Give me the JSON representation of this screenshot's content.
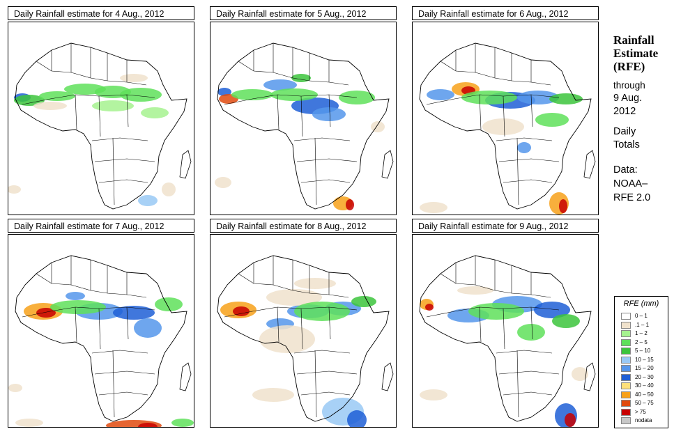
{
  "panels": [
    {
      "title": "Daily Rainfall estimate for  4 Aug., 2012"
    },
    {
      "title": "Daily Rainfall estimate for  5 Aug., 2012"
    },
    {
      "title": "Daily Rainfall estimate for  6 Aug., 2012"
    },
    {
      "title": "Daily Rainfall estimate for  7 Aug., 2012"
    },
    {
      "title": "Daily Rainfall estimate for  8 Aug., 2012"
    },
    {
      "title": "Daily Rainfall estimate for  9 Aug., 2012"
    }
  ],
  "sidebar": {
    "title_line1": "Rainfall",
    "title_line2": "Estimate",
    "title_line3": "(RFE)",
    "through_label": "through",
    "through_date1": "9 Aug.",
    "through_date2": "2012",
    "daily_label1": "Daily",
    "daily_label2": "Totals",
    "data_label": "Data:",
    "data_source1": "NOAA–",
    "data_source2": "RFE 2.0"
  },
  "legend": {
    "title": "RFE (mm)",
    "items": [
      {
        "label": "0 – 1",
        "color": "#ffffff"
      },
      {
        "label": ".1 – 1",
        "color": "#f0e2cc"
      },
      {
        "label": "1 – 2",
        "color": "#a6f28f"
      },
      {
        "label": "2 – 5",
        "color": "#5fe05a"
      },
      {
        "label": "5 – 10",
        "color": "#3cc43c"
      },
      {
        "label": "10 – 15",
        "color": "#99c9f5"
      },
      {
        "label": "15 – 20",
        "color": "#5596eb"
      },
      {
        "label": "20 – 30",
        "color": "#1e5fd6"
      },
      {
        "label": "30 – 40",
        "color": "#ffe07a"
      },
      {
        "label": "40 – 50",
        "color": "#f7a11a"
      },
      {
        "label": "50 – 75",
        "color": "#e04a0e"
      },
      {
        "label": "> 75",
        "color": "#c80000"
      },
      {
        "label": "nodata",
        "color": "#c8c8c8"
      }
    ]
  }
}
